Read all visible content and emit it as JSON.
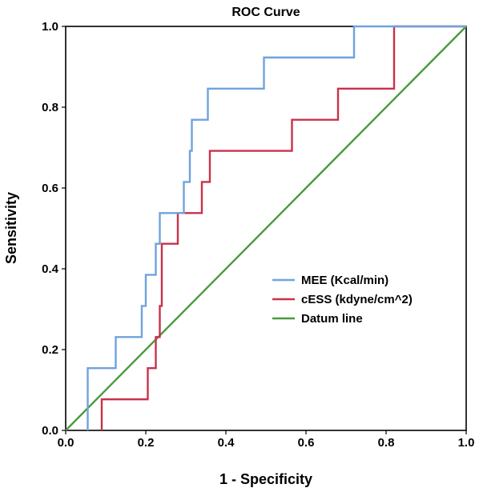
{
  "chart_data": {
    "type": "line",
    "title": "ROC Curve",
    "xlabel": "1 - Specificity",
    "ylabel": "Sensitivity",
    "xlim": [
      0,
      1
    ],
    "ylim": [
      0,
      1
    ],
    "xticks": [
      "0.0",
      "0.2",
      "0.4",
      "0.6",
      "0.8",
      "1.0"
    ],
    "yticks": [
      "0.0",
      "0.2",
      "0.4",
      "0.6",
      "0.8",
      "1.0"
    ],
    "grid": false,
    "legend_position": "bottom-right",
    "series": [
      {
        "name": "MEE (Kcal/min)",
        "color": "#6fa3dc",
        "points": [
          [
            0.055,
            0
          ],
          [
            0.055,
            0.154
          ],
          [
            0.125,
            0.154
          ],
          [
            0.125,
            0.231
          ],
          [
            0.19,
            0.231
          ],
          [
            0.19,
            0.308
          ],
          [
            0.2,
            0.308
          ],
          [
            0.2,
            0.385
          ],
          [
            0.225,
            0.385
          ],
          [
            0.225,
            0.462
          ],
          [
            0.235,
            0.462
          ],
          [
            0.235,
            0.538
          ],
          [
            0.295,
            0.538
          ],
          [
            0.295,
            0.615
          ],
          [
            0.31,
            0.615
          ],
          [
            0.31,
            0.692
          ],
          [
            0.315,
            0.692
          ],
          [
            0.315,
            0.769
          ],
          [
            0.355,
            0.769
          ],
          [
            0.355,
            0.846
          ],
          [
            0.495,
            0.846
          ],
          [
            0.495,
            0.923
          ],
          [
            0.72,
            0.923
          ],
          [
            0.72,
            1.0
          ],
          [
            1.0,
            1.0
          ]
        ]
      },
      {
        "name": "cESS (kdyne/cm^2)",
        "color": "#c8324a",
        "points": [
          [
            0.09,
            0
          ],
          [
            0.09,
            0.077
          ],
          [
            0.205,
            0.077
          ],
          [
            0.205,
            0.154
          ],
          [
            0.225,
            0.154
          ],
          [
            0.225,
            0.231
          ],
          [
            0.235,
            0.231
          ],
          [
            0.235,
            0.308
          ],
          [
            0.24,
            0.308
          ],
          [
            0.24,
            0.462
          ],
          [
            0.28,
            0.462
          ],
          [
            0.28,
            0.538
          ],
          [
            0.34,
            0.538
          ],
          [
            0.34,
            0.615
          ],
          [
            0.36,
            0.615
          ],
          [
            0.36,
            0.692
          ],
          [
            0.565,
            0.692
          ],
          [
            0.565,
            0.769
          ],
          [
            0.68,
            0.769
          ],
          [
            0.68,
            0.846
          ],
          [
            0.82,
            0.846
          ],
          [
            0.82,
            1.0
          ],
          [
            1.0,
            1.0
          ]
        ]
      },
      {
        "name": "Datum line",
        "color": "#4a9a3e",
        "points": [
          [
            0,
            0
          ],
          [
            1,
            1
          ]
        ]
      }
    ]
  }
}
